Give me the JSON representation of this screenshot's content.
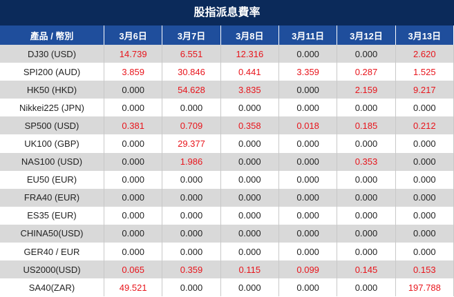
{
  "header": {
    "title": "股指派息費率"
  },
  "table": {
    "columns": [
      "產品 / 幣別",
      "3月6日",
      "3月7日",
      "3月8日",
      "3月11日",
      "3月12日",
      "3月13日"
    ],
    "rows": [
      [
        "DJ30 (USD)",
        "14.739",
        "6.551",
        "12.316",
        "0.000",
        "0.000",
        "2.620"
      ],
      [
        "SPI200 (AUD)",
        "3.859",
        "30.846",
        "0.441",
        "3.359",
        "0.287",
        "1.525"
      ],
      [
        "HK50 (HKD)",
        "0.000",
        "54.628",
        "3.835",
        "0.000",
        "2.159",
        "9.217"
      ],
      [
        "Nikkei225 (JPN)",
        "0.000",
        "0.000",
        "0.000",
        "0.000",
        "0.000",
        "0.000"
      ],
      [
        "SP500 (USD)",
        "0.381",
        "0.709",
        "0.358",
        "0.018",
        "0.185",
        "0.212"
      ],
      [
        "UK100 (GBP)",
        "0.000",
        "29.377",
        "0.000",
        "0.000",
        "0.000",
        "0.000"
      ],
      [
        "NAS100 (USD)",
        "0.000",
        "1.986",
        "0.000",
        "0.000",
        "0.353",
        "0.000"
      ],
      [
        "EU50 (EUR)",
        "0.000",
        "0.000",
        "0.000",
        "0.000",
        "0.000",
        "0.000"
      ],
      [
        "FRA40 (EUR)",
        "0.000",
        "0.000",
        "0.000",
        "0.000",
        "0.000",
        "0.000"
      ],
      [
        "ES35 (EUR)",
        "0.000",
        "0.000",
        "0.000",
        "0.000",
        "0.000",
        "0.000"
      ],
      [
        "CHINA50(USD)",
        "0.000",
        "0.000",
        "0.000",
        "0.000",
        "0.000",
        "0.000"
      ],
      [
        "GER40 / EUR",
        "0.000",
        "0.000",
        "0.000",
        "0.000",
        "0.000",
        "0.000"
      ],
      [
        "US2000(USD)",
        "0.065",
        "0.359",
        "0.115",
        "0.099",
        "0.145",
        "0.153"
      ],
      [
        "SA40(ZAR)",
        "49.521",
        "0.000",
        "0.000",
        "0.000",
        "0.000",
        "197.788"
      ]
    ],
    "nonzero_color": "#e8141b"
  }
}
